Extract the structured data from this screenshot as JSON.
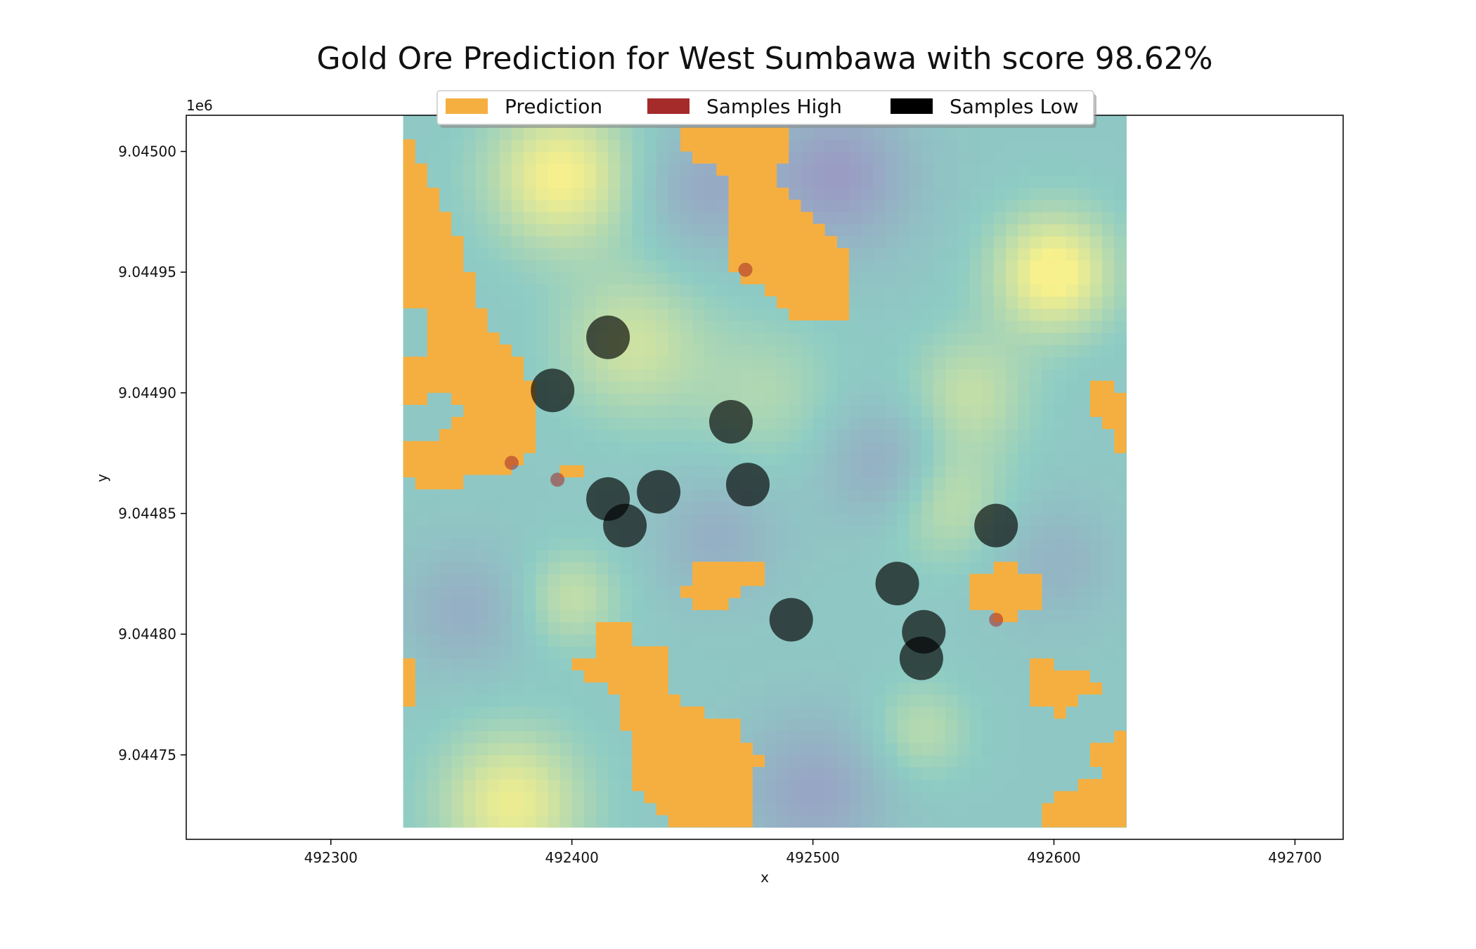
{
  "chart_data": {
    "type": "scatter",
    "title": "Gold Ore Prediction for West Sumbawa with score 98.62%",
    "xlabel": "x",
    "ylabel": "y",
    "y_offset_label": "1e6",
    "xlim": [
      492240,
      492720
    ],
    "ylim": [
      9044715,
      9045015
    ],
    "x_ticks": [
      492300,
      492400,
      492500,
      492600,
      492700
    ],
    "x_tick_labels": [
      "492300",
      "492400",
      "492500",
      "492600",
      "492700"
    ],
    "y_ticks": [
      9044750,
      9044800,
      9044850,
      9044900,
      9044950,
      9045000
    ],
    "y_tick_labels": [
      "9.04475",
      "9.04480",
      "9.04485",
      "9.04490",
      "9.04495",
      "9.04500"
    ],
    "grid": false,
    "legend_position": "top-center",
    "raster_extent": {
      "x": [
        492330,
        492630
      ],
      "y": [
        9044720,
        9045015
      ]
    },
    "colors": {
      "prediction": "#F5AF41",
      "samples_high": "#A52A2A",
      "samples_low": "#000000",
      "raster_low": "#9A9CC4",
      "raster_mid": "#8ECCC4",
      "raster_high": "#F7F08C"
    },
    "series": [
      {
        "name": "Prediction",
        "kind": "region",
        "polygons": [
          [
            [
              492330,
              9045005
            ],
            [
              492335,
              9045005
            ],
            [
              492335,
              9044995
            ],
            [
              492340,
              9044995
            ],
            [
              492340,
              9044985
            ],
            [
              492345,
              9044985
            ],
            [
              492345,
              9044975
            ],
            [
              492350,
              9044975
            ],
            [
              492350,
              9044965
            ],
            [
              492355,
              9044965
            ],
            [
              492355,
              9044950
            ],
            [
              492360,
              9044950
            ],
            [
              492360,
              9044935
            ],
            [
              492365,
              9044935
            ],
            [
              492365,
              9044925
            ],
            [
              492370,
              9044925
            ],
            [
              492370,
              9044920
            ],
            [
              492375,
              9044920
            ],
            [
              492375,
              9044915
            ],
            [
              492380,
              9044915
            ],
            [
              492380,
              9044905
            ],
            [
              492385,
              9044905
            ],
            [
              492385,
              9044895
            ],
            [
              492385,
              9044875
            ],
            [
              492380,
              9044875
            ],
            [
              492380,
              9044870
            ],
            [
              492375,
              9044870
            ],
            [
              492375,
              9044866
            ],
            [
              492355,
              9044866
            ],
            [
              492355,
              9044860
            ],
            [
              492335,
              9044860
            ],
            [
              492335,
              9044865
            ],
            [
              492330,
              9044865
            ],
            [
              492330,
              9044880
            ],
            [
              492345,
              9044880
            ],
            [
              492345,
              9044885
            ],
            [
              492350,
              9044885
            ],
            [
              492350,
              9044890
            ],
            [
              492355,
              9044890
            ],
            [
              492355,
              9044895
            ],
            [
              492350,
              9044895
            ],
            [
              492350,
              9044900
            ],
            [
              492340,
              9044900
            ],
            [
              492340,
              9044895
            ],
            [
              492330,
              9044895
            ],
            [
              492330,
              9044915
            ],
            [
              492340,
              9044915
            ],
            [
              492340,
              9044935
            ],
            [
              492330,
              9044935
            ]
          ],
          [
            [
              492395,
              9044870
            ],
            [
              492405,
              9044870
            ],
            [
              492405,
              9044865
            ],
            [
              492395,
              9044865
            ]
          ],
          [
            [
              492445,
              9045010
            ],
            [
              492490,
              9045010
            ],
            [
              492490,
              9044995
            ],
            [
              492485,
              9044995
            ],
            [
              492485,
              9044985
            ],
            [
              492490,
              9044985
            ],
            [
              492490,
              9044980
            ],
            [
              492495,
              9044980
            ],
            [
              492495,
              9044975
            ],
            [
              492500,
              9044975
            ],
            [
              492500,
              9044970
            ],
            [
              492505,
              9044970
            ],
            [
              492505,
              9044965
            ],
            [
              492510,
              9044965
            ],
            [
              492510,
              9044960
            ],
            [
              492515,
              9044960
            ],
            [
              492515,
              9044930
            ],
            [
              492490,
              9044930
            ],
            [
              492490,
              9044935
            ],
            [
              492485,
              9044935
            ],
            [
              492485,
              9044940
            ],
            [
              492480,
              9044940
            ],
            [
              492480,
              9044945
            ],
            [
              492470,
              9044945
            ],
            [
              492470,
              9044950
            ],
            [
              492465,
              9044950
            ],
            [
              492465,
              9044990
            ],
            [
              492460,
              9044990
            ],
            [
              492460,
              9044995
            ],
            [
              492450,
              9044995
            ],
            [
              492450,
              9045000
            ],
            [
              492445,
              9045000
            ]
          ],
          [
            [
              492575,
              9044830
            ],
            [
              492585,
              9044830
            ],
            [
              492585,
              9044825
            ],
            [
              492595,
              9044825
            ],
            [
              492595,
              9044810
            ],
            [
              492585,
              9044810
            ],
            [
              492585,
              9044805
            ],
            [
              492575,
              9044805
            ],
            [
              492575,
              9044810
            ],
            [
              492565,
              9044810
            ],
            [
              492565,
              9044825
            ],
            [
              492575,
              9044825
            ]
          ],
          [
            [
              492450,
              9044830
            ],
            [
              492480,
              9044830
            ],
            [
              492480,
              9044820
            ],
            [
              492470,
              9044820
            ],
            [
              492470,
              9044815
            ],
            [
              492465,
              9044815
            ],
            [
              492465,
              9044810
            ],
            [
              492450,
              9044810
            ],
            [
              492450,
              9044815
            ],
            [
              492445,
              9044815
            ],
            [
              492445,
              9044820
            ],
            [
              492450,
              9044820
            ]
          ],
          [
            [
              492410,
              9044805
            ],
            [
              492425,
              9044805
            ],
            [
              492425,
              9044795
            ],
            [
              492440,
              9044795
            ],
            [
              492440,
              9044775
            ],
            [
              492445,
              9044775
            ],
            [
              492445,
              9044770
            ],
            [
              492455,
              9044770
            ],
            [
              492455,
              9044765
            ],
            [
              492470,
              9044765
            ],
            [
              492470,
              9044755
            ],
            [
              492475,
              9044755
            ],
            [
              492475,
              9044750
            ],
            [
              492480,
              9044750
            ],
            [
              492480,
              9044745
            ],
            [
              492475,
              9044745
            ],
            [
              492475,
              9044720
            ],
            [
              492440,
              9044720
            ],
            [
              492440,
              9044725
            ],
            [
              492435,
              9044725
            ],
            [
              492435,
              9044730
            ],
            [
              492430,
              9044730
            ],
            [
              492430,
              9044735
            ],
            [
              492425,
              9044735
            ],
            [
              492425,
              9044760
            ],
            [
              492420,
              9044760
            ],
            [
              492420,
              9044775
            ],
            [
              492415,
              9044775
            ],
            [
              492415,
              9044780
            ],
            [
              492405,
              9044780
            ],
            [
              492405,
              9044785
            ],
            [
              492400,
              9044785
            ],
            [
              492400,
              9044790
            ],
            [
              492410,
              9044790
            ]
          ],
          [
            [
              492330,
              9044790
            ],
            [
              492335,
              9044790
            ],
            [
              492335,
              9044770
            ],
            [
              492330,
              9044770
            ]
          ],
          [
            [
              492590,
              9044790
            ],
            [
              492600,
              9044790
            ],
            [
              492600,
              9044785
            ],
            [
              492615,
              9044785
            ],
            [
              492615,
              9044780
            ],
            [
              492620,
              9044780
            ],
            [
              492620,
              9044775
            ],
            [
              492610,
              9044775
            ],
            [
              492610,
              9044770
            ],
            [
              492605,
              9044770
            ],
            [
              492605,
              9044765
            ],
            [
              492600,
              9044765
            ],
            [
              492600,
              9044770
            ],
            [
              492590,
              9044770
            ]
          ],
          [
            [
              492625,
              9044760
            ],
            [
              492630,
              9044760
            ],
            [
              492630,
              9044720
            ],
            [
              492595,
              9044720
            ],
            [
              492595,
              9044730
            ],
            [
              492600,
              9044730
            ],
            [
              492600,
              9044735
            ],
            [
              492610,
              9044735
            ],
            [
              492610,
              9044740
            ],
            [
              492620,
              9044740
            ],
            [
              492620,
              9044745
            ],
            [
              492615,
              9044745
            ],
            [
              492615,
              9044755
            ],
            [
              492625,
              9044755
            ]
          ],
          [
            [
              492615,
              9044905
            ],
            [
              492625,
              9044905
            ],
            [
              492625,
              9044900
            ],
            [
              492630,
              9044900
            ],
            [
              492630,
              9044875
            ],
            [
              492625,
              9044875
            ],
            [
              492625,
              9044885
            ],
            [
              492620,
              9044885
            ],
            [
              492620,
              9044890
            ],
            [
              492615,
              9044890
            ]
          ]
        ]
      },
      {
        "name": "Samples High",
        "kind": "points",
        "points": [
          [
            492472,
            9044951
          ],
          [
            492375,
            9044871
          ],
          [
            492394,
            9044864
          ],
          [
            492576,
            9044806
          ]
        ]
      },
      {
        "name": "Samples Low",
        "kind": "points",
        "points": [
          [
            492415,
            9044923
          ],
          [
            492392,
            9044901
          ],
          [
            492466,
            9044888
          ],
          [
            492473,
            9044862
          ],
          [
            492436,
            9044859
          ],
          [
            492415,
            9044856
          ],
          [
            492422,
            9044845
          ],
          [
            492576,
            9044845
          ],
          [
            492535,
            9044821
          ],
          [
            492546,
            9044801
          ],
          [
            492491,
            9044806
          ],
          [
            492545,
            9044790
          ]
        ]
      }
    ]
  }
}
